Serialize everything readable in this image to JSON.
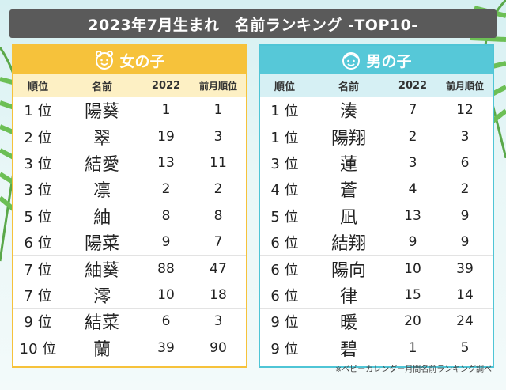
{
  "title": "2023年7月生まれ　名前ランキング -TOP10-",
  "columns": {
    "rank": "順位",
    "name": "名前",
    "year": "2022",
    "prev": "前月順位"
  },
  "girls": {
    "heading": "女の子",
    "rows": [
      {
        "rank": "1 位",
        "name": "陽葵",
        "year": "1",
        "prev": "1"
      },
      {
        "rank": "2 位",
        "name": "翠",
        "year": "19",
        "prev": "3"
      },
      {
        "rank": "3 位",
        "name": "結愛",
        "year": "13",
        "prev": "11"
      },
      {
        "rank": "3 位",
        "name": "凛",
        "year": "2",
        "prev": "2"
      },
      {
        "rank": "5 位",
        "name": "紬",
        "year": "8",
        "prev": "8"
      },
      {
        "rank": "6 位",
        "name": "陽菜",
        "year": "9",
        "prev": "7"
      },
      {
        "rank": "7 位",
        "name": "紬葵",
        "year": "88",
        "prev": "47"
      },
      {
        "rank": "7 位",
        "name": "澪",
        "year": "10",
        "prev": "18"
      },
      {
        "rank": "9 位",
        "name": "結菜",
        "year": "6",
        "prev": "3"
      },
      {
        "rank": "10 位",
        "name": "蘭",
        "year": "39",
        "prev": "90"
      }
    ]
  },
  "boys": {
    "heading": "男の子",
    "rows": [
      {
        "rank": "1 位",
        "name": "湊",
        "year": "7",
        "prev": "12"
      },
      {
        "rank": "1 位",
        "name": "陽翔",
        "year": "2",
        "prev": "3"
      },
      {
        "rank": "3 位",
        "name": "蓮",
        "year": "3",
        "prev": "6"
      },
      {
        "rank": "4 位",
        "name": "蒼",
        "year": "4",
        "prev": "2"
      },
      {
        "rank": "5 位",
        "name": "凪",
        "year": "13",
        "prev": "9"
      },
      {
        "rank": "6 位",
        "name": "結翔",
        "year": "9",
        "prev": "9"
      },
      {
        "rank": "6 位",
        "name": "陽向",
        "year": "10",
        "prev": "39"
      },
      {
        "rank": "6 位",
        "name": "律",
        "year": "15",
        "prev": "14"
      },
      {
        "rank": "9 位",
        "name": "暖",
        "year": "20",
        "prev": "24"
      },
      {
        "rank": "9 位",
        "name": "碧",
        "year": "1",
        "prev": "5"
      }
    ]
  },
  "note": "※ベビーカレンダー月間名前ランキング調べ",
  "colors": {
    "girls_accent": "#f6c23b",
    "boys_accent": "#56c8d8",
    "title_bg": "#5a5a5a"
  },
  "icons": {
    "girls": "girl-face-icon",
    "boys": "boy-face-icon",
    "background": "palm-leaf-icon"
  }
}
